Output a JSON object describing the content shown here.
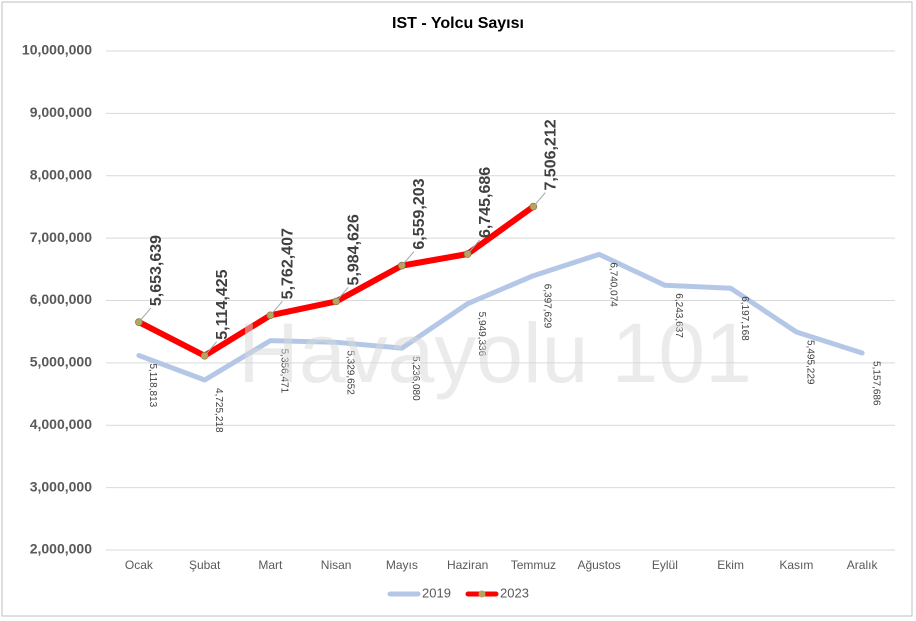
{
  "chart_data": {
    "type": "line",
    "title": "IST - Yolcu Sayısı",
    "annotation": "Havayolu 101",
    "categories": [
      "Ocak",
      "Şubat",
      "Mart",
      "Nisan",
      "Mayıs",
      "Haziran",
      "Temmuz",
      "Ağustos",
      "Eylül",
      "Ekim",
      "Kasım",
      "Aralık"
    ],
    "series": [
      {
        "name": "2019",
        "color": "#b4c7e7",
        "values": [
          5118813,
          4725218,
          5356471,
          5329652,
          5236080,
          5949336,
          6397629,
          6740074,
          6243637,
          6197168,
          5495229,
          5157686
        ],
        "value_labels": [
          "5,118,813",
          "4,725,218",
          "5,356,471",
          "5,329,652",
          "5,236,080",
          "5,949,336",
          "6,397,629",
          "6,740,074",
          "6,243,637",
          "6,197,168",
          "5,495,229",
          "5,157,686"
        ]
      },
      {
        "name": "2023",
        "color": "#ff0000",
        "marker_color": "#b9a35e",
        "values": [
          5653639,
          5114425,
          5762407,
          5984626,
          6559203,
          6745686,
          7506212,
          null,
          null,
          null,
          null,
          null
        ],
        "value_labels": [
          "5,653,639",
          "5,114,425",
          "5,762,407",
          "5,984,626",
          "6,559,203",
          "6,745,686",
          "7,506,212",
          null,
          null,
          null,
          null,
          null
        ]
      }
    ],
    "ylim": [
      2000000,
      10000000
    ],
    "yticks": [
      {
        "value": 2000000,
        "label": "2,000,000"
      },
      {
        "value": 3000000,
        "label": "3,000,000"
      },
      {
        "value": 4000000,
        "label": "4,000,000"
      },
      {
        "value": 5000000,
        "label": "5,000,000"
      },
      {
        "value": 6000000,
        "label": "6,000,000"
      },
      {
        "value": 7000000,
        "label": "7,000,000"
      },
      {
        "value": 8000000,
        "label": "8,000,000"
      },
      {
        "value": 9000000,
        "label": "9,000,000"
      },
      {
        "value": 10000000,
        "label": "10,000,000"
      }
    ],
    "grid": true,
    "legend": "bottom"
  }
}
